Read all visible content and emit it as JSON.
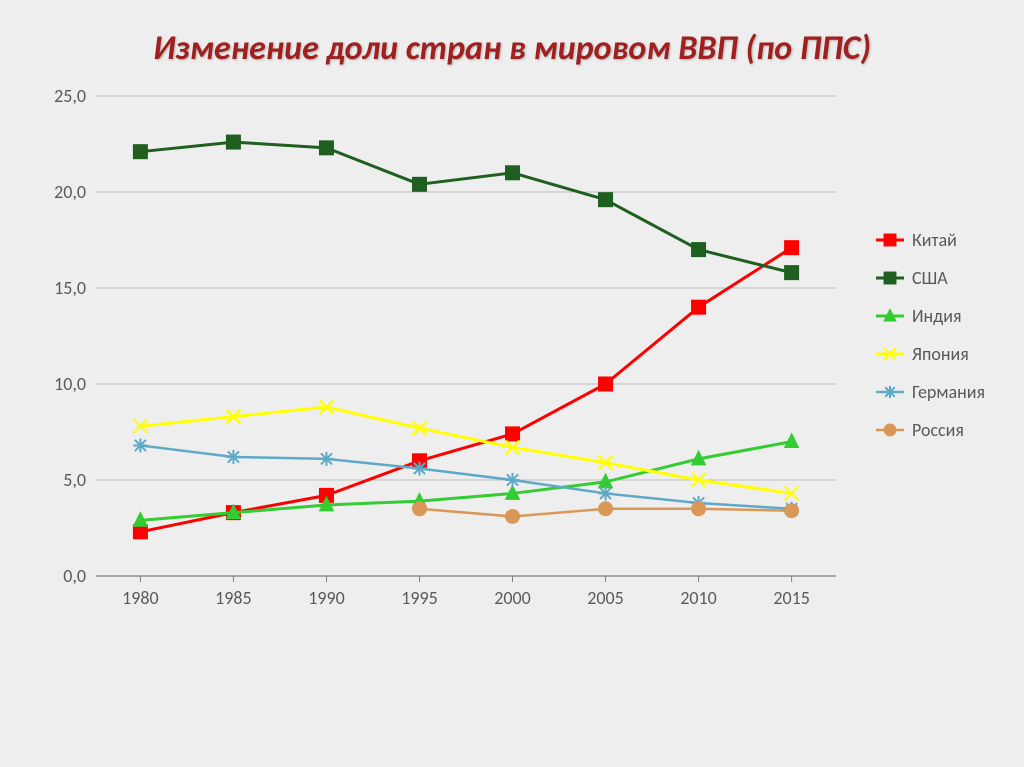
{
  "title": "Изменение доли стран в мировом ВВП (по ППС)",
  "chart": {
    "type": "line",
    "background_color": "#eeeeee",
    "plot_background": "#eeeeee",
    "grid_color": "#bfbfbf",
    "axis_color": "#808080",
    "tick_font_size": 18,
    "legend_font_size": 18,
    "x_categories": [
      "1980",
      "1985",
      "1990",
      "1995",
      "2000",
      "2005",
      "2010",
      "2015"
    ],
    "ylim": [
      0,
      25
    ],
    "ytick_step": 5,
    "ytick_labels": [
      "0,0",
      "5,0",
      "10,0",
      "15,0",
      "20,0",
      "25,0"
    ],
    "series": [
      {
        "name": "Китай",
        "color": "#ff0000",
        "marker": "square",
        "line_width": 3.0,
        "values": [
          2.3,
          3.3,
          4.2,
          6.0,
          7.4,
          10.0,
          14.0,
          17.1
        ]
      },
      {
        "name": "США",
        "color": "#1f5f1f",
        "marker": "square",
        "line_width": 3.0,
        "values": [
          22.1,
          22.6,
          22.3,
          20.4,
          21.0,
          19.6,
          17.0,
          15.8
        ]
      },
      {
        "name": "Индия",
        "color": "#33cc33",
        "marker": "triangle",
        "line_width": 3.0,
        "values": [
          2.9,
          3.3,
          3.7,
          3.9,
          4.3,
          4.9,
          6.1,
          7.0
        ]
      },
      {
        "name": "Япония",
        "color": "#ffff00",
        "marker": "x",
        "line_width": 3.0,
        "values": [
          7.8,
          8.3,
          8.8,
          7.7,
          6.7,
          5.9,
          5.0,
          4.3
        ]
      },
      {
        "name": "Германия",
        "color": "#5da9c7",
        "marker": "asterisk",
        "line_width": 2.5,
        "values": [
          6.8,
          6.2,
          6.1,
          5.6,
          5.0,
          4.3,
          3.8,
          3.5
        ]
      },
      {
        "name": "Россия",
        "color": "#d99857",
        "marker": "circle",
        "line_width": 2.5,
        "values": [
          null,
          null,
          null,
          3.5,
          3.1,
          3.5,
          3.5,
          3.4
        ]
      }
    ],
    "marker_size": 7,
    "legend_position": "right"
  }
}
